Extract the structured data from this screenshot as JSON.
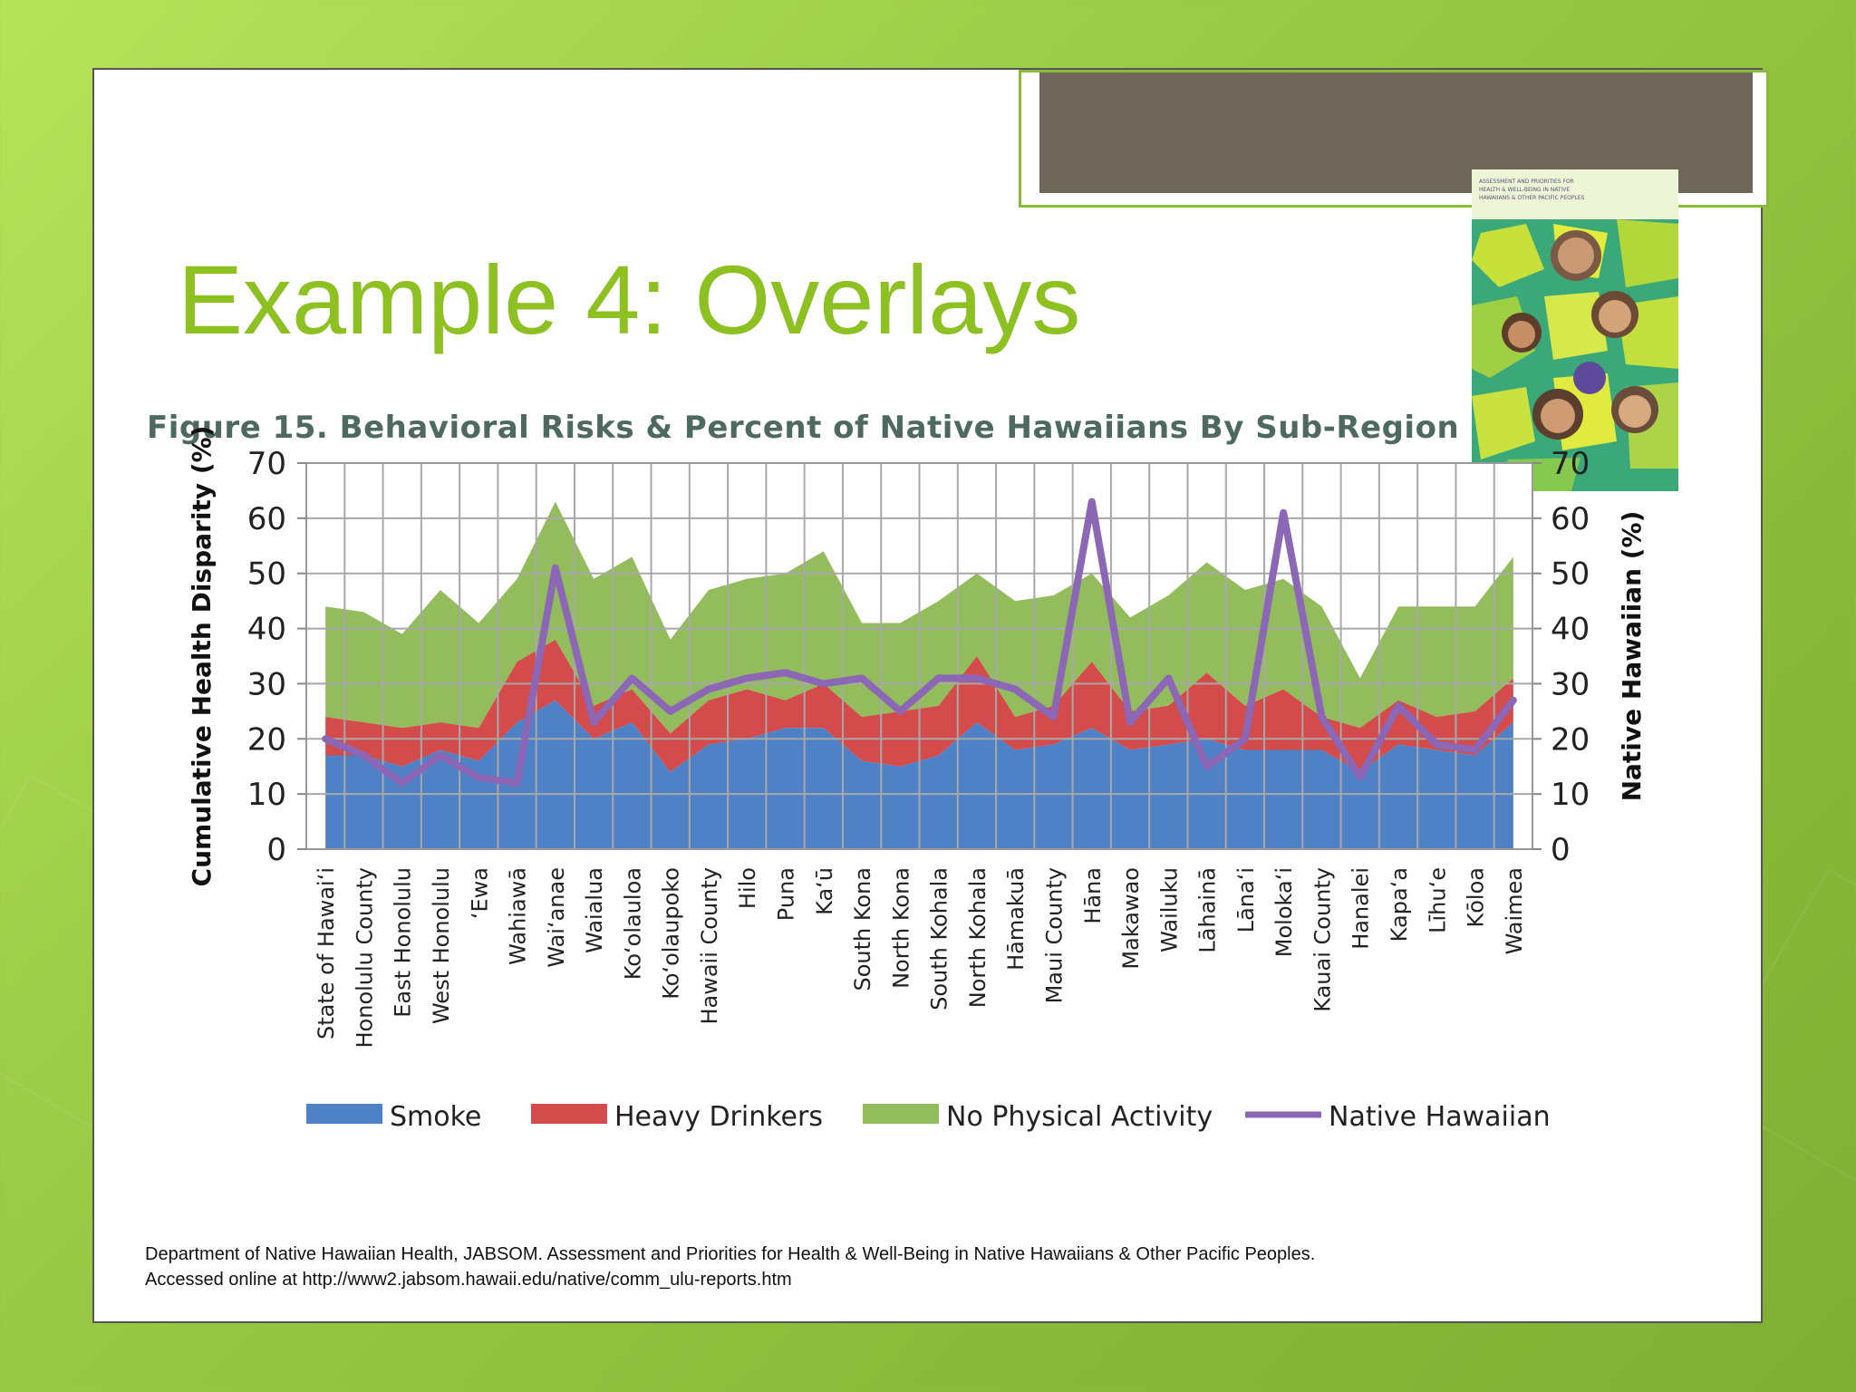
{
  "slide": {
    "title": "Example 4: Overlays",
    "figure_title": "Figure 15.  Behavioral Risks & Percent of Native Hawaiians By Sub-Region",
    "citation_line1": "Department of Native Hawaiian Health, JABSOM. Assessment and Priorities for Health & Well-Being in Native Hawaiians & Other Pacific Peoples.",
    "citation_line2": "Accessed online at http://www2.jabsom.hawaii.edu/native/comm_ulu-reports.htm",
    "cover_text": "ASSESSMENT AND PRIORITIES FOR HEALTH & WELL-BEING IN NATIVE HAWAIIANS & OTHER PACIFIC PEOPLES",
    "colors": {
      "title": "#8dc021",
      "frame_tab": "#6f665a",
      "background": "#9ccc48"
    }
  },
  "chart_data": {
    "type": "area",
    "stacked": true,
    "title": "Figure 15.  Behavioral Risks & Percent of Native Hawaiians By Sub-Region",
    "ylabel": "Cumulative Health Disparity (%)",
    "y2label": "Native Hawaiian (%)",
    "ylim": [
      0,
      70
    ],
    "y2lim": [
      0,
      70
    ],
    "yticks": [
      0,
      10,
      20,
      30,
      40,
      50,
      60,
      70
    ],
    "grid": true,
    "legend_position": "bottom",
    "categories": [
      "State of Hawai‘i",
      "Honolulu County",
      "East Honolulu",
      "West Honolulu",
      "‘Ewa",
      "Wahiawā",
      "Wai‘anae",
      "Waialua",
      "Ko‘olauloa",
      "Ko‘olaupoko",
      "Hawaii County",
      "Hilo",
      "Puna",
      "Ka‘ū",
      "South Kona",
      "North Kona",
      "South Kohala",
      "North Kohala",
      "Hāmakuā",
      "Maui County",
      "Hāna",
      "Makawao",
      "Wailuku",
      "Lāhainā",
      "Lāna‘i",
      "Moloka‘i",
      "Kauai County",
      "Hanalei",
      "Kapa‘a",
      "Līhu‘e",
      "Kōloa",
      "Waimea"
    ],
    "series": [
      {
        "name": "Smoke",
        "kind": "area",
        "color": "#4f81c6",
        "values": [
          17,
          17,
          15,
          18,
          16,
          23,
          27,
          20,
          23,
          14,
          19,
          20,
          22,
          22,
          16,
          15,
          17,
          23,
          18,
          19,
          22,
          18,
          19,
          20,
          18,
          18,
          18,
          14,
          19,
          18,
          17,
          23
        ]
      },
      {
        "name": "Heavy Drinkers",
        "kind": "area",
        "color": "#d34b4a",
        "values": [
          7,
          6,
          7,
          5,
          6,
          11,
          11,
          6,
          6,
          7,
          8,
          9,
          5,
          8,
          8,
          10,
          9,
          12,
          6,
          7,
          12,
          7,
          7,
          12,
          8,
          11,
          6,
          8,
          8,
          6,
          8,
          8
        ]
      },
      {
        "name": "No Physical Activity",
        "kind": "area",
        "color": "#93bd5c",
        "values": [
          20,
          20,
          17,
          24,
          19,
          15,
          25,
          23,
          24,
          17,
          20,
          20,
          23,
          24,
          17,
          16,
          19,
          15,
          21,
          20,
          16,
          17,
          20,
          20,
          21,
          20,
          20,
          9,
          17,
          20,
          19,
          22
        ]
      },
      {
        "name": "Native Hawaiian",
        "kind": "line",
        "axis": "right",
        "color": "#8b67b5",
        "values": [
          20,
          17,
          12,
          17,
          13,
          12,
          51,
          23,
          31,
          25,
          29,
          31,
          32,
          30,
          31,
          25,
          31,
          31,
          29,
          24,
          63,
          23,
          31,
          15,
          20,
          61,
          24,
          13,
          26,
          19,
          18,
          27
        ]
      }
    ]
  }
}
